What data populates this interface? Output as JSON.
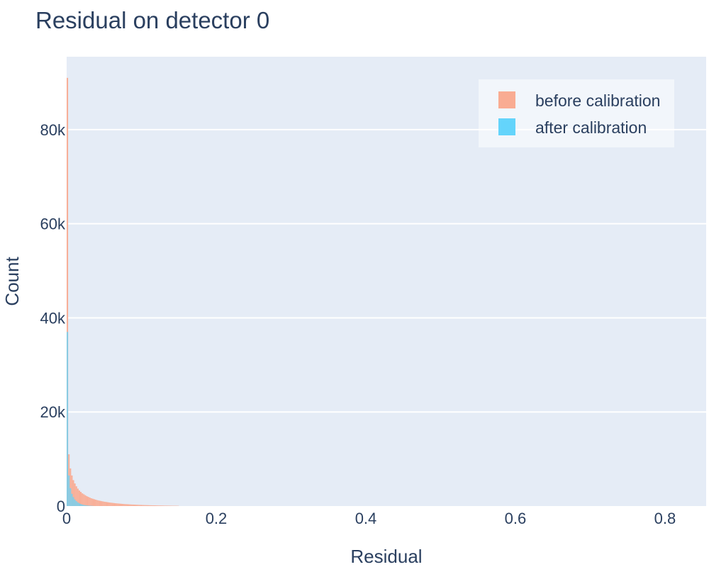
{
  "chart_data": {
    "type": "bar",
    "title": "Residual on detector 0",
    "xlabel": "Residual",
    "ylabel": "Count",
    "xlim": [
      0,
      0.855
    ],
    "ylim": [
      0,
      95500
    ],
    "x_ticks": [
      {
        "value": 0,
        "label": "0"
      },
      {
        "value": 0.2,
        "label": "0.2"
      },
      {
        "value": 0.4,
        "label": "0.4"
      },
      {
        "value": 0.6,
        "label": "0.6"
      },
      {
        "value": 0.8,
        "label": "0.8"
      }
    ],
    "y_ticks": [
      {
        "value": 0,
        "label": "0"
      },
      {
        "value": 20000,
        "label": "20k"
      },
      {
        "value": 40000,
        "label": "40k"
      },
      {
        "value": 60000,
        "label": "60k"
      },
      {
        "value": 80000,
        "label": "80k"
      }
    ],
    "grid": true,
    "legend_position": "top-right",
    "bin_width": 0.002,
    "series": [
      {
        "name": "before calibration",
        "color": "#f9ac92",
        "x": [
          0.001,
          0.003,
          0.005,
          0.007,
          0.009,
          0.011,
          0.013,
          0.015,
          0.017,
          0.019,
          0.021,
          0.023,
          0.025,
          0.027,
          0.029,
          0.031,
          0.033,
          0.035,
          0.037,
          0.039,
          0.041,
          0.043,
          0.045,
          0.047,
          0.049,
          0.051,
          0.053,
          0.055,
          0.057,
          0.059,
          0.061,
          0.063,
          0.065,
          0.067,
          0.069,
          0.071,
          0.073,
          0.075,
          0.077,
          0.079,
          0.081,
          0.083,
          0.085,
          0.087,
          0.089,
          0.091,
          0.093,
          0.095,
          0.097,
          0.099,
          0.101,
          0.103,
          0.105,
          0.107,
          0.109,
          0.111,
          0.113,
          0.115,
          0.117,
          0.119,
          0.121,
          0.123,
          0.125,
          0.127,
          0.129,
          0.131,
          0.133,
          0.135,
          0.137,
          0.139,
          0.141,
          0.143,
          0.145,
          0.147,
          0.149
        ],
        "values": [
          91000,
          11000,
          8000,
          6500,
          5500,
          4800,
          4200,
          3700,
          3300,
          3000,
          2700,
          2500,
          2300,
          2100,
          1950,
          1800,
          1650,
          1550,
          1450,
          1350,
          1250,
          1170,
          1100,
          1030,
          970,
          910,
          860,
          810,
          760,
          720,
          680,
          640,
          600,
          570,
          540,
          510,
          480,
          455,
          430,
          405,
          385,
          365,
          345,
          325,
          310,
          295,
          280,
          265,
          250,
          238,
          226,
          214,
          202,
          192,
          182,
          172,
          163,
          155,
          147,
          139,
          131,
          124,
          117,
          111,
          105,
          99,
          94,
          89,
          84,
          79,
          74,
          70,
          66,
          62,
          58
        ]
      },
      {
        "name": "after calibration",
        "color": "#64d4fb",
        "x": [
          0.001,
          0.003,
          0.005,
          0.007,
          0.009,
          0.011,
          0.013,
          0.015,
          0.017,
          0.019,
          0.021,
          0.023,
          0.025,
          0.027,
          0.029,
          0.031,
          0.033,
          0.035
        ],
        "values": [
          37000,
          6500,
          3800,
          2600,
          1900,
          1400,
          1050,
          780,
          580,
          430,
          320,
          240,
          180,
          130,
          95,
          70,
          50,
          35
        ]
      }
    ]
  },
  "legend": {
    "before_label": "before calibration",
    "after_label": "after calibration"
  }
}
